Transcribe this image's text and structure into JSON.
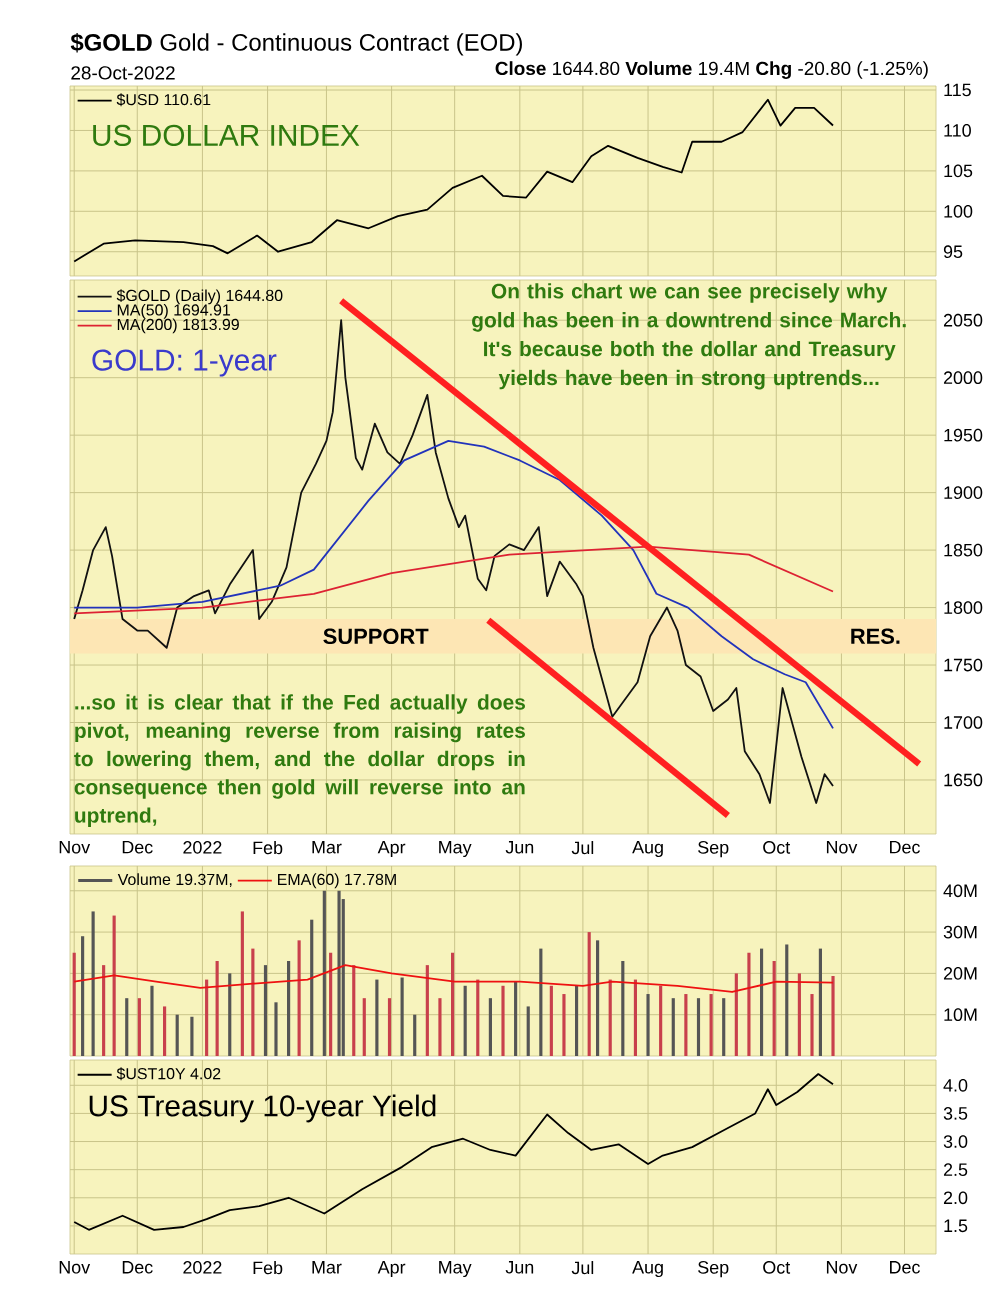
{
  "chart_data": [
    {
      "type": "line",
      "title": "**$GOLD** Gold - Continuous Contract (EOD)",
      "subtitle": "28-Oct-2022",
      "annotations": [
        "**Close** 1644.80 **Volume** 19.4M **Chg** -20.80 (-1.25%)",
        "US DOLLAR INDEX"
      ],
      "xlim": [
        "2021-10-30",
        "2022-12-16"
      ],
      "xticks": [
        {
          "value": "2021-11-01",
          "label": null
        },
        {
          "value": "2021-12-01",
          "label": null
        },
        {
          "value": "2022-01-01",
          "label": null
        },
        {
          "value": "2022-02-01",
          "label": null
        },
        {
          "value": "2022-03-01",
          "label": null
        },
        {
          "value": "2022-04-01",
          "label": null
        },
        {
          "value": "2022-05-01",
          "label": null
        },
        {
          "value": "2022-06-01",
          "label": null
        },
        {
          "value": "2022-07-01",
          "label": null
        },
        {
          "value": "2022-08-01",
          "label": null
        },
        {
          "value": "2022-09-01",
          "label": null
        },
        {
          "value": "2022-10-01",
          "label": null
        },
        {
          "value": "2022-11-01",
          "label": null
        },
        {
          "value": "2022-12-01",
          "label": null
        }
      ],
      "ylim": [
        92,
        115.5
      ],
      "yticks": [
        95,
        100,
        105,
        110,
        115
      ],
      "grid": true,
      "legend": "top left",
      "tick_labels": "y",
      "series": [
        {
          "name": "$USD 110.61",
          "color": "#000000",
          "x": [
            "2021-11-01",
            "2021-11-15",
            "2021-11-30",
            "2021-12-23",
            "2022-01-06",
            "2022-01-13",
            "2022-01-27",
            "2022-02-06",
            "2022-02-22",
            "2022-03-06",
            "2022-03-21",
            "2022-04-04",
            "2022-04-18",
            "2022-04-30",
            "2022-05-14",
            "2022-05-24",
            "2022-06-04",
            "2022-06-14",
            "2022-06-26",
            "2022-07-05",
            "2022-07-13",
            "2022-07-27",
            "2022-08-08",
            "2022-08-17",
            "2022-08-22",
            "2022-09-05",
            "2022-09-15",
            "2022-09-27",
            "2022-10-03",
            "2022-10-10",
            "2022-10-19",
            "2022-10-28"
          ],
          "values": [
            93.8,
            96.0,
            96.4,
            96.2,
            95.7,
            94.8,
            97.0,
            95.0,
            96.2,
            98.9,
            97.9,
            99.4,
            100.2,
            102.9,
            104.4,
            101.9,
            101.7,
            104.9,
            103.6,
            106.8,
            108.1,
            106.6,
            105.5,
            104.8,
            108.6,
            108.6,
            109.8,
            113.8,
            110.6,
            112.8,
            112.8,
            110.61
          ]
        }
      ]
    },
    {
      "type": "line",
      "annotations": [
        "GOLD: 1-year",
        "On this chart we can see precisely why gold has been in a downtrend since March. It's because both the dollar and Treasury yields have been in strong uptrends...",
        "...so it is clear that if the Fed actually does pivot, meaning reverse from raising rates to lowering them, and the dollar drops in consequence then gold will reverse into an uptrend,",
        "RES."
      ],
      "xlim": [
        "2021-10-30",
        "2022-12-16"
      ],
      "xticks": [
        {
          "value": "2021-11-01",
          "label": "Nov"
        },
        {
          "value": "2021-12-01",
          "label": "Dec"
        },
        {
          "value": "2022-01-01",
          "label": "2022"
        },
        {
          "value": "2022-02-01",
          "label": "Feb"
        },
        {
          "value": "2022-03-01",
          "label": "Mar"
        },
        {
          "value": "2022-04-01",
          "label": "Apr"
        },
        {
          "value": "2022-05-01",
          "label": "May"
        },
        {
          "value": "2022-06-01",
          "label": "Jun"
        },
        {
          "value": "2022-07-01",
          "label": "Jul"
        },
        {
          "value": "2022-08-01",
          "label": "Aug"
        },
        {
          "value": "2022-09-01",
          "label": "Sep"
        },
        {
          "value": "2022-10-01",
          "label": "Oct"
        },
        {
          "value": "2022-11-01",
          "label": "Nov"
        },
        {
          "value": "2022-12-01",
          "label": "Dec"
        }
      ],
      "ylim": [
        1603,
        2085
      ],
      "yticks": [
        1650,
        1700,
        1750,
        1800,
        1850,
        1900,
        1950,
        2000,
        2050
      ],
      "grid": true,
      "legend": "top left",
      "bands": [
        {
          "axis": "y",
          "from": 1760,
          "to": 1790,
          "label": "SUPPORT",
          "color": "#fde6b4"
        }
      ],
      "series": [
        {
          "name": "$GOLD (Daily) 1644.80",
          "color": "#111111",
          "x": [
            "2021-11-01",
            "2021-11-05",
            "2021-11-10",
            "2021-11-16",
            "2021-11-19",
            "2021-11-24",
            "2021-12-01",
            "2021-12-06",
            "2021-12-15",
            "2021-12-20",
            "2021-12-28",
            "2022-01-04",
            "2022-01-07",
            "2022-01-14",
            "2022-01-25",
            "2022-01-28",
            "2022-02-03",
            "2022-02-10",
            "2022-02-17",
            "2022-02-24",
            "2022-03-01",
            "2022-03-04",
            "2022-03-08",
            "2022-03-10",
            "2022-03-15",
            "2022-03-18",
            "2022-03-24",
            "2022-03-30",
            "2022-04-05",
            "2022-04-11",
            "2022-04-18",
            "2022-04-22",
            "2022-04-28",
            "2022-05-03",
            "2022-05-06",
            "2022-05-12",
            "2022-05-16",
            "2022-05-20",
            "2022-05-27",
            "2022-06-03",
            "2022-06-10",
            "2022-06-14",
            "2022-06-20",
            "2022-06-28",
            "2022-07-01",
            "2022-07-06",
            "2022-07-12",
            "2022-07-15",
            "2022-07-21",
            "2022-07-27",
            "2022-08-02",
            "2022-08-10",
            "2022-08-15",
            "2022-08-19",
            "2022-08-26",
            "2022-09-01",
            "2022-09-08",
            "2022-09-12",
            "2022-09-16",
            "2022-09-23",
            "2022-09-28",
            "2022-10-04",
            "2022-10-07",
            "2022-10-13",
            "2022-10-20",
            "2022-10-24",
            "2022-10-28"
          ],
          "values": [
            1790,
            1815,
            1850,
            1870,
            1845,
            1790,
            1780,
            1780,
            1765,
            1800,
            1810,
            1815,
            1795,
            1820,
            1850,
            1790,
            1805,
            1835,
            1900,
            1925,
            1945,
            1970,
            2050,
            2000,
            1930,
            1920,
            1960,
            1935,
            1925,
            1950,
            1985,
            1935,
            1895,
            1870,
            1880,
            1825,
            1815,
            1845,
            1855,
            1850,
            1870,
            1810,
            1840,
            1820,
            1810,
            1765,
            1725,
            1705,
            1720,
            1735,
            1775,
            1800,
            1780,
            1750,
            1740,
            1710,
            1720,
            1730,
            1675,
            1655,
            1630,
            1730,
            1710,
            1670,
            1630,
            1655,
            1644.8
          ]
        },
        {
          "name": "MA(50) 1694.91",
          "color": "#2233bb",
          "x": [
            "2021-11-01",
            "2021-12-01",
            "2022-01-01",
            "2022-02-07",
            "2022-02-23",
            "2022-03-21",
            "2022-04-07",
            "2022-04-28",
            "2022-05-15",
            "2022-06-01",
            "2022-06-20",
            "2022-07-10",
            "2022-07-25",
            "2022-08-05",
            "2022-08-20",
            "2022-09-05",
            "2022-09-20",
            "2022-10-05",
            "2022-10-15",
            "2022-10-28"
          ],
          "values": [
            1800,
            1800,
            1805,
            1819,
            1833,
            1893,
            1928,
            1945,
            1940,
            1928,
            1911,
            1880,
            1850,
            1812,
            1800,
            1775,
            1755,
            1742,
            1735,
            1694.91
          ]
        },
        {
          "name": "MA(200) 1813.99",
          "color": "#dd2233",
          "x": [
            "2021-11-01",
            "2022-01-01",
            "2022-02-23",
            "2022-04-01",
            "2022-05-27",
            "2022-08-01",
            "2022-09-18",
            "2022-10-28"
          ],
          "values": [
            1795,
            1800,
            1812,
            1830,
            1846,
            1853,
            1846,
            1813.99
          ]
        },
        {
          "color": "#ff2020",
          "x": [
            "2022-03-08",
            "2022-12-08"
          ],
          "values": [
            2067,
            1664
          ]
        },
        {
          "color": "#ff2020",
          "x": [
            "2022-05-17",
            "2022-09-08"
          ],
          "values": [
            1789,
            1619
          ]
        }
      ]
    },
    {
      "type": "bar",
      "xlim": [
        "2021-10-30",
        "2022-12-16"
      ],
      "xticks": [
        {
          "value": "2021-11-01",
          "label": null
        },
        {
          "value": "2021-12-01",
          "label": null
        },
        {
          "value": "2022-01-01",
          "label": null
        },
        {
          "value": "2022-02-01",
          "label": null
        },
        {
          "value": "2022-03-01",
          "label": null
        },
        {
          "value": "2022-04-01",
          "label": null
        },
        {
          "value": "2022-05-01",
          "label": null
        },
        {
          "value": "2022-06-01",
          "label": null
        },
        {
          "value": "2022-07-01",
          "label": null
        },
        {
          "value": "2022-08-01",
          "label": null
        },
        {
          "value": "2022-09-01",
          "label": null
        },
        {
          "value": "2022-10-01",
          "label": null
        },
        {
          "value": "2022-11-01",
          "label": null
        },
        {
          "value": "2022-12-01",
          "label": null
        }
      ],
      "ylim": [
        0,
        46
      ],
      "yticks": [
        {
          "value": 10,
          "label": "10M"
        },
        {
          "value": 20,
          "label": "20M"
        },
        {
          "value": 30,
          "label": "30M"
        },
        {
          "value": 40,
          "label": "40M"
        }
      ],
      "grid": true,
      "legend": "top left",
      "tick_labels": "y",
      "series": [
        {
          "name": "Volume 19.37M,",
          "color": "#555555",
          "x": [
            "2021-11-01",
            "2021-11-05",
            "2021-11-10",
            "2021-11-15",
            "2021-11-20",
            "2021-11-26",
            "2021-12-02",
            "2021-12-08",
            "2021-12-14",
            "2021-12-20",
            "2021-12-27",
            "2022-01-03",
            "2022-01-08",
            "2022-01-14",
            "2022-01-20",
            "2022-01-25",
            "2022-01-31",
            "2022-02-05",
            "2022-02-11",
            "2022-02-16",
            "2022-02-22",
            "2022-02-28",
            "2022-03-03",
            "2022-03-07",
            "2022-03-09",
            "2022-03-14",
            "2022-03-19",
            "2022-03-25",
            "2022-03-31",
            "2022-04-06",
            "2022-04-12",
            "2022-04-18",
            "2022-04-24",
            "2022-04-30",
            "2022-05-06",
            "2022-05-12",
            "2022-05-18",
            "2022-05-24",
            "2022-05-30",
            "2022-06-05",
            "2022-06-11",
            "2022-06-16",
            "2022-06-22",
            "2022-06-28",
            "2022-07-04",
            "2022-07-08",
            "2022-07-14",
            "2022-07-20",
            "2022-07-26",
            "2022-08-01",
            "2022-08-07",
            "2022-08-13",
            "2022-08-19",
            "2022-08-25",
            "2022-08-31",
            "2022-09-06",
            "2022-09-12",
            "2022-09-18",
            "2022-09-24",
            "2022-09-30",
            "2022-10-06",
            "2022-10-12",
            "2022-10-18",
            "2022-10-22",
            "2022-10-28"
          ],
          "values": [
            25,
            29,
            35,
            22,
            34,
            14,
            14,
            17,
            12,
            10,
            9.5,
            18.5,
            23,
            20,
            35,
            26,
            22,
            13,
            23,
            28,
            33,
            40,
            25,
            40,
            38,
            22,
            14,
            18.5,
            14,
            19,
            10,
            22,
            14,
            25,
            17,
            18.5,
            14,
            17,
            18,
            12,
            26,
            17,
            15,
            17,
            30,
            28,
            18.5,
            23,
            18.5,
            15,
            17,
            14,
            15,
            14,
            15,
            14,
            20,
            25,
            26,
            23,
            27,
            20,
            15,
            26,
            19.37
          ],
          "colors": [
            "#c8404c",
            "#555555",
            "#555555",
            "#c8404c",
            "#c8404c",
            "#555555",
            "#c8404c",
            "#555555",
            "#c8404c",
            "#555555",
            "#555555",
            "#c8404c",
            "#c8404c",
            "#555555",
            "#c8404c",
            "#c8404c",
            "#555555",
            "#555555",
            "#555555",
            "#c8404c",
            "#555555",
            "#555555",
            "#c8404c",
            "#555555",
            "#555555",
            "#c8404c",
            "#c8404c",
            "#555555",
            "#c8404c",
            "#555555",
            "#555555",
            "#c8404c",
            "#c8404c",
            "#c8404c",
            "#555555",
            "#c8404c",
            "#555555",
            "#c8404c",
            "#555555",
            "#555555",
            "#555555",
            "#c8404c",
            "#c8404c",
            "#555555",
            "#c8404c",
            "#555555",
            "#c8404c",
            "#555555",
            "#c8404c",
            "#555555",
            "#c8404c",
            "#555555",
            "#c8404c",
            "#555555",
            "#c8404c",
            "#555555",
            "#c8404c",
            "#c8404c",
            "#555555",
            "#c8404c",
            "#555555",
            "#c8404c",
            "#c8404c",
            "#555555",
            "#c8404c"
          ]
        },
        {
          "name": "EMA(60) 17.78M",
          "type": "line",
          "color": "#ee1111",
          "x": [
            "2021-11-01",
            "2021-11-20",
            "2021-12-10",
            "2021-12-31",
            "2022-01-25",
            "2022-02-20",
            "2022-03-10",
            "2022-04-01",
            "2022-05-01",
            "2022-06-01",
            "2022-07-01",
            "2022-07-15",
            "2022-08-15",
            "2022-09-10",
            "2022-10-01",
            "2022-10-28"
          ],
          "values": [
            18,
            19.5,
            18,
            16.5,
            17.5,
            18.5,
            22,
            20,
            18,
            18,
            17,
            18,
            17,
            15.5,
            18,
            17.78
          ]
        }
      ]
    },
    {
      "type": "line",
      "annotations": [
        "US Treasury 10-year Yield"
      ],
      "xlim": [
        "2021-10-30",
        "2022-12-16"
      ],
      "xticks": [
        {
          "value": "2021-11-01",
          "label": "Nov"
        },
        {
          "value": "2021-12-01",
          "label": "Dec"
        },
        {
          "value": "2022-01-01",
          "label": "2022"
        },
        {
          "value": "2022-02-01",
          "label": "Feb"
        },
        {
          "value": "2022-03-01",
          "label": "Mar"
        },
        {
          "value": "2022-04-01",
          "label": "Apr"
        },
        {
          "value": "2022-05-01",
          "label": "May"
        },
        {
          "value": "2022-06-01",
          "label": "Jun"
        },
        {
          "value": "2022-07-01",
          "label": "Jul"
        },
        {
          "value": "2022-08-01",
          "label": "Aug"
        },
        {
          "value": "2022-09-01",
          "label": "Sep"
        },
        {
          "value": "2022-10-01",
          "label": "Oct"
        },
        {
          "value": "2022-11-01",
          "label": "Nov"
        },
        {
          "value": "2022-12-01",
          "label": "Dec"
        }
      ],
      "ylim": [
        1.0,
        4.45
      ],
      "yticks": [
        1.5,
        {
          "value": 2,
          "label": "2.0"
        },
        2.5,
        {
          "value": 3,
          "label": "3.0"
        },
        3.5,
        {
          "value": 4,
          "label": "4.0"
        }
      ],
      "grid": true,
      "legend": "top left",
      "series": [
        {
          "name": "$UST10Y 4.02",
          "color": "#000000",
          "x": [
            "2021-11-01",
            "2021-11-08",
            "2021-11-24",
            "2021-12-09",
            "2021-12-23",
            "2022-01-03",
            "2022-01-14",
            "2022-01-28",
            "2022-02-11",
            "2022-02-28",
            "2022-03-18",
            "2022-04-06",
            "2022-04-20",
            "2022-05-05",
            "2022-05-18",
            "2022-05-30",
            "2022-06-14",
            "2022-06-24",
            "2022-07-05",
            "2022-07-18",
            "2022-08-01",
            "2022-08-08",
            "2022-08-22",
            "2022-09-06",
            "2022-09-21",
            "2022-09-27",
            "2022-10-01",
            "2022-10-11",
            "2022-10-21",
            "2022-10-28"
          ],
          "values": [
            1.57,
            1.43,
            1.68,
            1.43,
            1.48,
            1.62,
            1.78,
            1.85,
            2.0,
            1.72,
            2.15,
            2.55,
            2.9,
            3.05,
            2.85,
            2.75,
            3.48,
            3.15,
            2.85,
            2.95,
            2.6,
            2.75,
            2.9,
            3.2,
            3.5,
            3.93,
            3.65,
            3.88,
            4.2,
            4.02
          ]
        }
      ]
    }
  ]
}
